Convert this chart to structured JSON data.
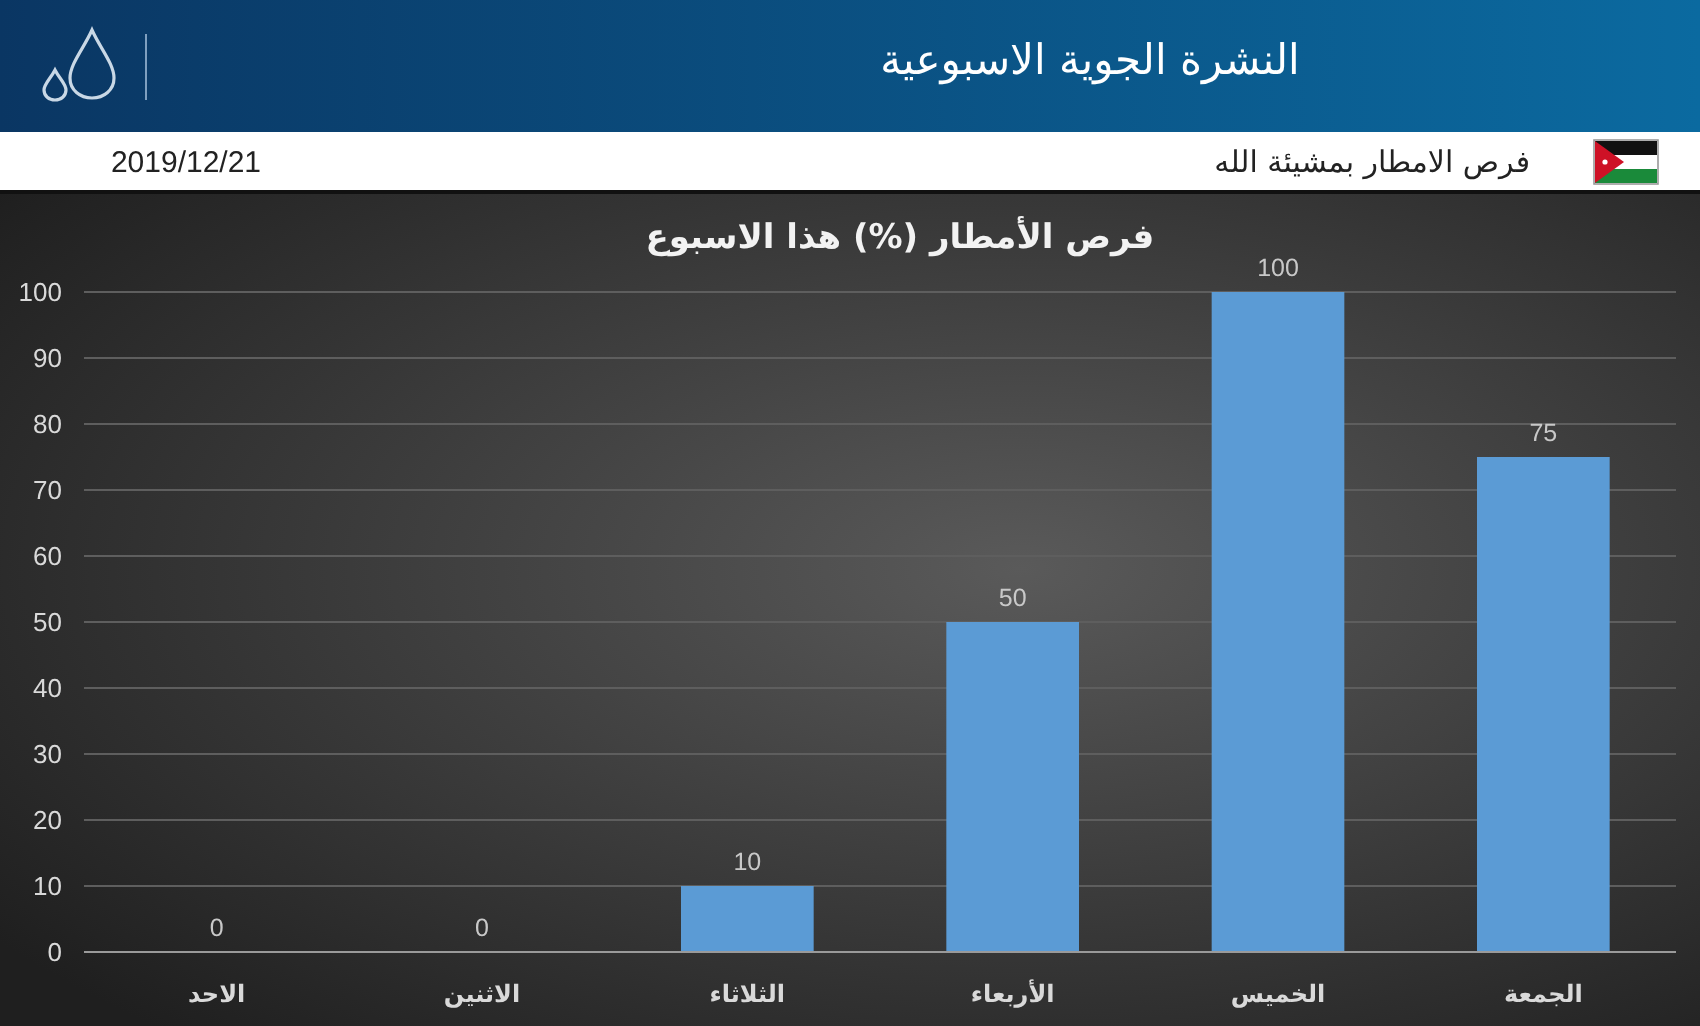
{
  "chart_data": {
    "type": "bar",
    "title": "فرص الأمطار (%) هذا الاسبوع",
    "subtitle": "فرص الامطار بمشيئة الله",
    "annotations": [
      "النشرة الجوية الاسبوعية",
      "2019/12/21"
    ],
    "categories": [
      "الاحد",
      "الاثنين",
      "الثلاثاء",
      "الأربعاء",
      "الخميس",
      "الجمعة"
    ],
    "values": [
      0,
      0,
      10,
      50,
      100,
      75
    ],
    "color": "#5b9bd5",
    "ylim": [
      0,
      100
    ],
    "yticks": [
      0,
      10,
      20,
      30,
      40,
      50,
      60,
      70,
      80,
      90,
      100
    ],
    "grid": "y",
    "data_labels": true
  }
}
